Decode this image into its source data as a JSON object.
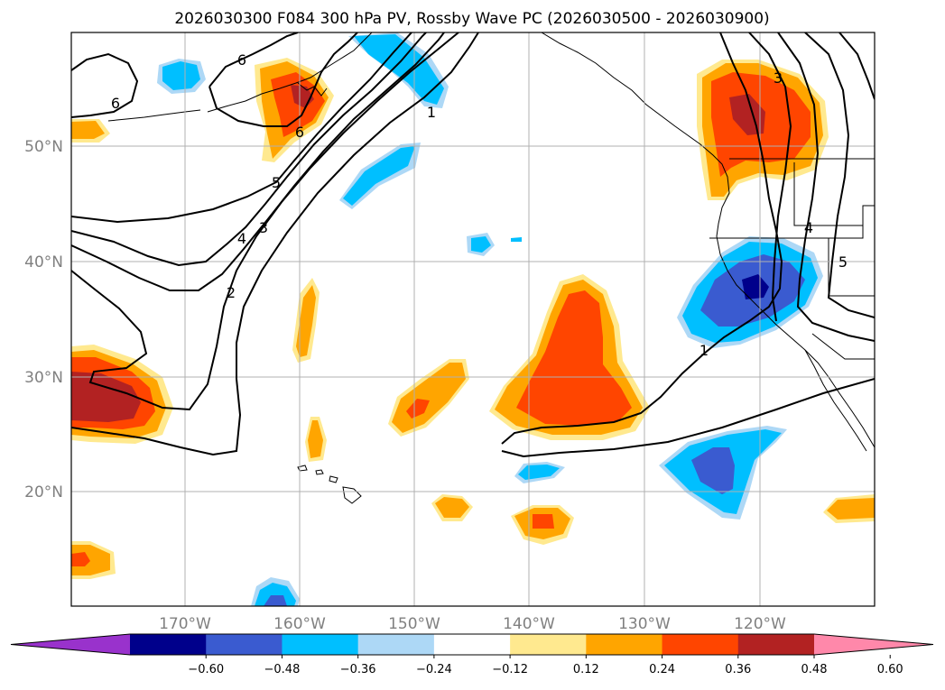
{
  "title": "2026030300 F084 300 hPa PV, Rossby Wave PC (2026030500 - 2026030900)",
  "lat_labels": [
    "50°N",
    "40°N",
    "30°N",
    "20°N"
  ],
  "lon_labels": [
    "170°W",
    "160°W",
    "150°W",
    "140°W",
    "130°W",
    "120°W"
  ],
  "pv_contour_labels": [
    "6",
    "6",
    "6",
    "5",
    "4",
    "3",
    "2",
    "1",
    "3",
    "4",
    "5",
    "1"
  ],
  "colorbar": {
    "tick_labels": [
      "−0.60",
      "−0.48",
      "−0.36",
      "−0.24",
      "−0.12",
      "0.12",
      "0.24",
      "0.36",
      "0.48",
      "0.60"
    ],
    "colors": [
      "#9932cc",
      "#00008b",
      "#3a5bd0",
      "#00bfff",
      "#add8f6",
      "#ffffff",
      "#ffe98f",
      "#ffa500",
      "#ff4500",
      "#b22222",
      "#ff88aa"
    ]
  },
  "legend": {
    "strong_negative": "#00008b",
    "negative": "#3a5bd0",
    "moderate_negative": "#00bfff",
    "weak_negative": "#add8f6",
    "weak_positive": "#ffe98f",
    "moderate_positive": "#ffa500",
    "positive": "#ff4500",
    "strong_positive": "#b22222"
  }
}
